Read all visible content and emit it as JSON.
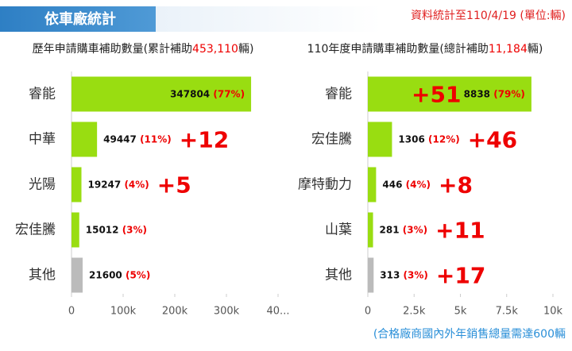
{
  "header": {
    "title": "依車廠統計",
    "note": "資料統計至110/4/19 (單位:輛)"
  },
  "footnote": "(合格廠商國內外年銷售總量需達600輛",
  "chart_data": [
    {
      "type": "hbar",
      "title": "歷年申請購車補助數量(累計補助",
      "title_highlight": "453,110",
      "title_suffix": "輛)",
      "categories": [
        "睿能",
        "中華",
        "光陽",
        "宏佳騰",
        "其他"
      ],
      "values": [
        347804,
        49447,
        19247,
        15012,
        21600
      ],
      "percent_labels": [
        "(77%)",
        "(11%)",
        "(4%)",
        "(3%)",
        "(5%)"
      ],
      "annotations": [
        null,
        "+12",
        "+5",
        null,
        null
      ],
      "colors": [
        "#99dd11",
        "#99dd11",
        "#99dd11",
        "#99dd11",
        "#bbbbbb"
      ],
      "xlim": [
        0,
        400000
      ],
      "xticks": [
        0,
        {
          "value": 100000,
          "label": "100k"
        },
        {
          "value": 200000,
          "label": "200k"
        },
        {
          "value": 300000,
          "label": "300k"
        },
        {
          "value": 400000,
          "label": "40..."
        }
      ]
    },
    {
      "type": "hbar",
      "title": "110年度申請購車補助數量(總計補助",
      "title_highlight": "11,184",
      "title_suffix": "輛)",
      "categories": [
        "睿能",
        "宏佳騰",
        "摩特動力",
        "山葉",
        "其他"
      ],
      "values": [
        8838,
        1306,
        446,
        281,
        313
      ],
      "percent_labels": [
        "(79%)",
        "(12%)",
        "(4%)",
        "(3%)",
        "(3%)"
      ],
      "annotations": [
        "+51",
        "+46",
        "+8",
        "+11",
        "+17"
      ],
      "colors": [
        "#99dd11",
        "#99dd11",
        "#99dd11",
        "#99dd11",
        "#bbbbbb"
      ],
      "xlim": [
        0,
        10000
      ],
      "xticks": [
        0,
        {
          "value": 2500,
          "label": "2.5k"
        },
        {
          "value": 5000,
          "label": "5k"
        },
        {
          "value": 7500,
          "label": "7.5k"
        },
        {
          "value": 10000,
          "label": "10k"
        }
      ]
    }
  ]
}
